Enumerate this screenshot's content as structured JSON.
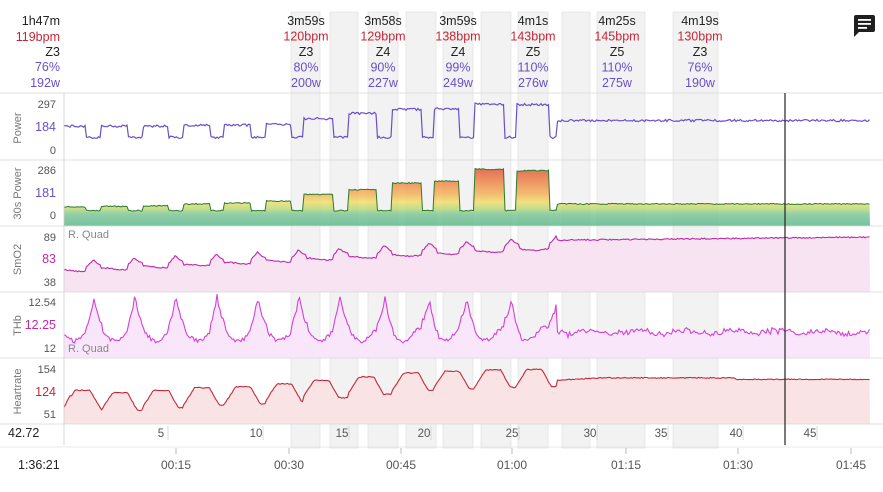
{
  "summary": {
    "duration": "1h47m",
    "hr": "119bpm",
    "zone": "Z3",
    "pct": "76%",
    "power": "192w"
  },
  "elapsed_time": "1:36:21",
  "distance": "42.72",
  "intervals": [
    {
      "duration": "3m59s",
      "hr": "120bpm",
      "zone": "Z3",
      "pct": "80%",
      "power": "200w"
    },
    {
      "duration": "3m58s",
      "hr": "129bpm",
      "zone": "Z4",
      "pct": "90%",
      "power": "227w"
    },
    {
      "duration": "3m59s",
      "hr": "138bpm",
      "zone": "Z4",
      "pct": "99%",
      "power": "249w"
    },
    {
      "duration": "4m1s",
      "hr": "143bpm",
      "zone": "Z5",
      "pct": "110%",
      "power": "276w"
    },
    {
      "duration": "4m25s",
      "hr": "145bpm",
      "zone": "Z5",
      "pct": "110%",
      "power": "275w"
    },
    {
      "duration": "4m19s",
      "hr": "130bpm",
      "zone": "Z3",
      "pct": "76%",
      "power": "190w"
    }
  ],
  "colors": {
    "power": "#6b4fc8",
    "hr": "#c62839",
    "smo2": "#c02aa8",
    "thb": "#d63fd8",
    "zone_green": "#3a9a3a",
    "zone_yellow": "#e7c83a",
    "zone_orange": "#e8832f",
    "zone_red": "#d9432e"
  },
  "icons": {
    "chat": "chat-icon"
  },
  "chart_data": {
    "type": "line",
    "x_axis": {
      "time_ticks": [
        "00:15",
        "00:30",
        "00:45",
        "01:00",
        "01:15",
        "01:30",
        "01:45"
      ],
      "distance_ticks": [
        "5",
        "10",
        "15",
        "20",
        "25",
        "30",
        "35",
        "40",
        "45"
      ],
      "xlim_minutes": [
        0,
        108
      ],
      "cursor_label": "1:36:21"
    },
    "panels": [
      {
        "name": "Power",
        "ylabel": "Power",
        "ticks": [
          "297",
          "184",
          "0"
        ],
        "current": "184",
        "ylim": [
          0,
          300
        ],
        "segments": [
          [
            0,
            160
          ],
          [
            3,
            100
          ],
          [
            5,
            160
          ],
          [
            8.5,
            100
          ],
          [
            10.5,
            160
          ],
          [
            14,
            100
          ],
          [
            16,
            165
          ],
          [
            19.5,
            100
          ],
          [
            21.5,
            165
          ],
          [
            25,
            100
          ],
          [
            27,
            170
          ],
          [
            30.5,
            100
          ],
          [
            32,
            200
          ],
          [
            36,
            100
          ],
          [
            38,
            228
          ],
          [
            42,
            100
          ],
          [
            44,
            250
          ],
          [
            48,
            100
          ],
          [
            49.5,
            252
          ],
          [
            53,
            100
          ],
          [
            55,
            278
          ],
          [
            59,
            100
          ],
          [
            60.5,
            275
          ],
          [
            65,
            100
          ],
          [
            66,
            190
          ],
          [
            108,
            192
          ]
        ]
      },
      {
        "name": "30s Power",
        "ylabel": "30s Power",
        "ticks": [
          "286",
          "181",
          "0"
        ],
        "current": "181",
        "ylim": [
          0,
          300
        ],
        "segments": [
          [
            0,
            80
          ],
          [
            3,
            60
          ],
          [
            5,
            82
          ],
          [
            8.5,
            60
          ],
          [
            10.5,
            85
          ],
          [
            14,
            60
          ],
          [
            16,
            95
          ],
          [
            19.5,
            60
          ],
          [
            21.5,
            100
          ],
          [
            25,
            60
          ],
          [
            27,
            110
          ],
          [
            30.5,
            60
          ],
          [
            32,
            145
          ],
          [
            36,
            60
          ],
          [
            38,
            170
          ],
          [
            42,
            60
          ],
          [
            44,
            205
          ],
          [
            48,
            60
          ],
          [
            49.5,
            215
          ],
          [
            53,
            60
          ],
          [
            55,
            278
          ],
          [
            59,
            60
          ],
          [
            60.5,
            270
          ],
          [
            65,
            60
          ],
          [
            66,
            95
          ],
          [
            108,
            98
          ]
        ]
      },
      {
        "name": "SmO2",
        "ylabel": "SmO2",
        "series_label": "R. Quad",
        "ticks": [
          "89",
          "83",
          "38"
        ],
        "current": "83",
        "ylim": [
          30,
          92
        ]
      },
      {
        "name": "THb",
        "ylabel": "THb",
        "series_label": "R. Quad",
        "ticks": [
          "12.54",
          "12.25",
          "12"
        ],
        "current": "12.25",
        "ylim": [
          11.95,
          12.6
        ]
      },
      {
        "name": "Heartrate",
        "ylabel": "Heartrate",
        "ticks": [
          "154",
          "124",
          "51"
        ],
        "current": "124",
        "ylim": [
          45,
          160
        ]
      }
    ]
  }
}
